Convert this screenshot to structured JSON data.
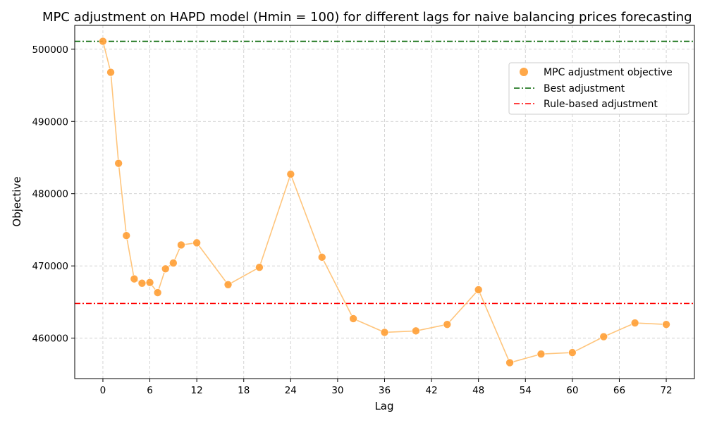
{
  "chart_data": {
    "type": "scatter",
    "title": "MPC adjustment on HAPD model (Hmin = 100) for different lags for naive balancing prices forecasting",
    "xlabel": "Lag",
    "ylabel": "Objective",
    "xlim": [
      -3.6,
      75.6
    ],
    "ylim": [
      454400,
      503300
    ],
    "x_ticks": [
      0,
      6,
      12,
      18,
      24,
      30,
      36,
      42,
      48,
      54,
      60,
      66,
      72
    ],
    "y_ticks": [
      460000,
      470000,
      480000,
      490000,
      500000
    ],
    "grid": true,
    "legend_position": "top-right",
    "series": [
      {
        "name": "MPC adjustment objective",
        "color": "#ff9f35",
        "line_color": "#ffc57c",
        "x": [
          0,
          1,
          2,
          3,
          4,
          5,
          6,
          7,
          8,
          9,
          10,
          12,
          16,
          20,
          24,
          28,
          32,
          36,
          40,
          44,
          48,
          52,
          56,
          60,
          64,
          68,
          72
        ],
        "y": [
          501100,
          496800,
          484200,
          474200,
          468200,
          467600,
          467700,
          466300,
          469600,
          470400,
          472900,
          473200,
          467400,
          469800,
          482700,
          471200,
          462700,
          460800,
          461000,
          461900,
          466700,
          456600,
          457800,
          458000,
          460200,
          462100,
          461900
        ]
      }
    ],
    "reference_lines": [
      {
        "name": "Best adjustment",
        "y": 501100,
        "color": "#006400",
        "style": "dash-dot"
      },
      {
        "name": "Rule-based adjustment",
        "y": 464800,
        "color": "#ff0000",
        "style": "dash-dot"
      }
    ]
  }
}
